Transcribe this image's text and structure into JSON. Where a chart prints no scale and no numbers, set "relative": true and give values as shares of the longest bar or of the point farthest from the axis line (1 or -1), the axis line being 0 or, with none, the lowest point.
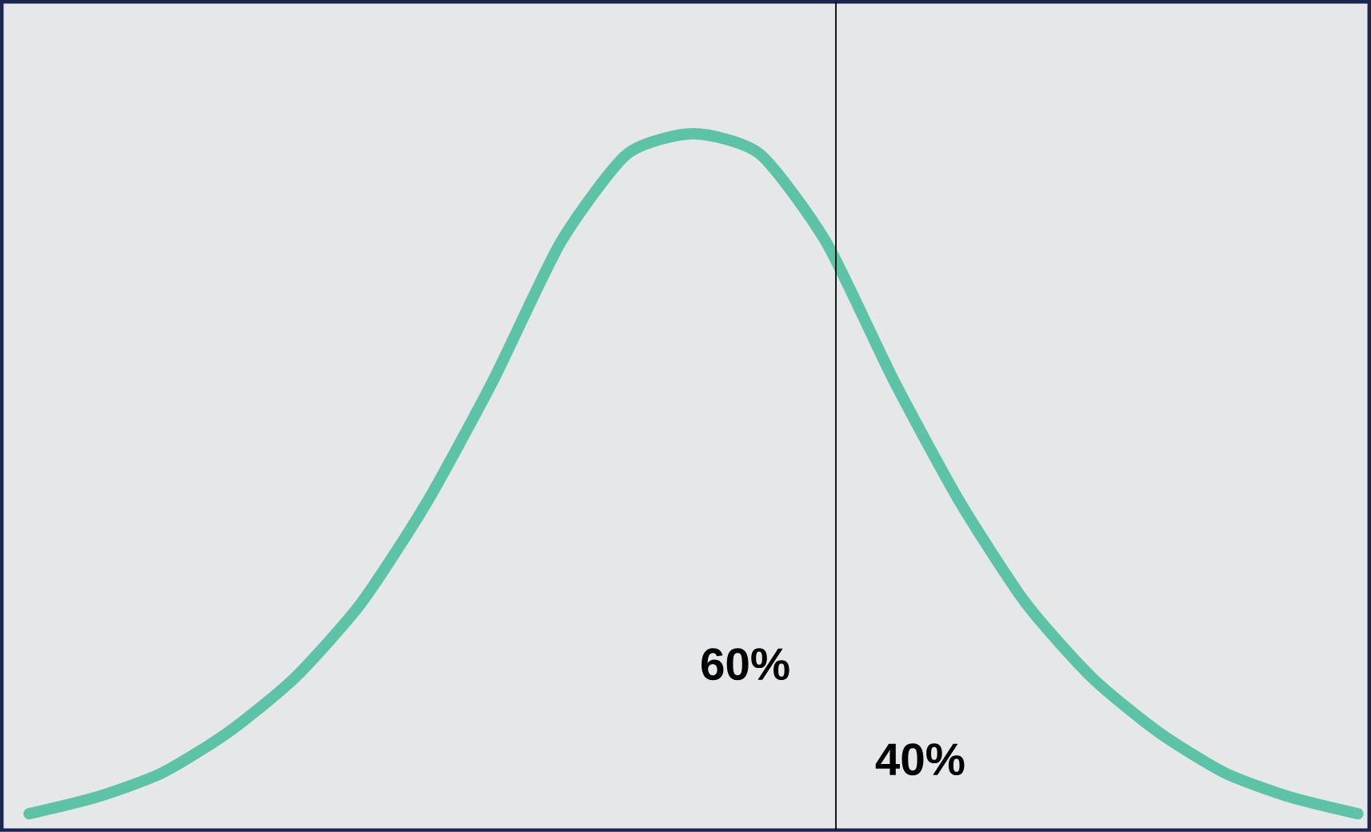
{
  "chart_data": {
    "type": "line",
    "relative": true,
    "categories": [
      null,
      null,
      null,
      null,
      null,
      null,
      null,
      null,
      null,
      null,
      null,
      null,
      null,
      null,
      null,
      null,
      null,
      null,
      null,
      null,
      null
    ],
    "series": [
      {
        "color": "#5cc3a6",
        "values": [
          0,
          0.024,
          0.06,
          0.12,
          0.2,
          0.31,
          0.46,
          0.64,
          0.84,
          0.97,
          1,
          0.97,
          0.84,
          0.64,
          0.46,
          0.31,
          0.2,
          0.12,
          0.06,
          0.024,
          0
        ]
      }
    ],
    "annotations": [
      "60%",
      "40%"
    ],
    "marker": "none",
    "line_style": "solid"
  }
}
